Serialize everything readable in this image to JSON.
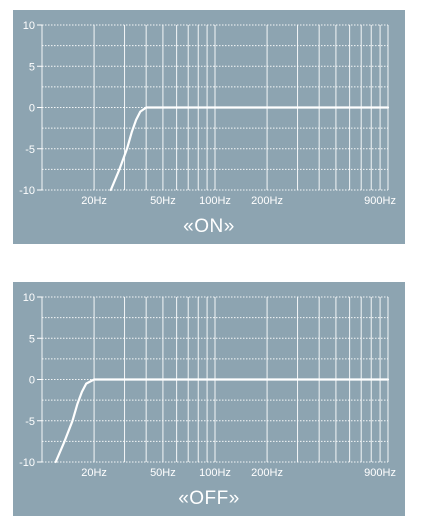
{
  "chart_data": [
    {
      "type": "line",
      "title": "«ON»",
      "x_scale": "log",
      "xlim": [
        10,
        1000
      ],
      "ylim": [
        -10,
        10
      ],
      "yticks": [
        10,
        5,
        0,
        -5,
        -10
      ],
      "xtick_labels": [
        {
          "value": 20,
          "label": "20Hz"
        },
        {
          "value": 50,
          "label": "50Hz"
        },
        {
          "value": 100,
          "label": "100Hz"
        },
        {
          "value": 200,
          "label": "200Hz"
        },
        {
          "value": 900,
          "label": "900Hz"
        }
      ],
      "grid": true,
      "series": [
        {
          "x": [
            25,
            28,
            31,
            33,
            35,
            37,
            40,
            44,
            50,
            100,
            300,
            1000
          ],
          "y": [
            -10,
            -7.5,
            -5,
            -3,
            -1.5,
            -0.5,
            0,
            0,
            0,
            0,
            0,
            0
          ]
        }
      ]
    },
    {
      "type": "line",
      "title": "«OFF»",
      "x_scale": "log",
      "xlim": [
        10,
        1000
      ],
      "ylim": [
        -10,
        10
      ],
      "yticks": [
        10,
        5,
        0,
        -5,
        -10
      ],
      "xtick_labels": [
        {
          "value": 20,
          "label": "20Hz"
        },
        {
          "value": 50,
          "label": "50Hz"
        },
        {
          "value": 100,
          "label": "100Hz"
        },
        {
          "value": 200,
          "label": "200Hz"
        },
        {
          "value": 900,
          "label": "900Hz"
        }
      ],
      "grid": true,
      "series": [
        {
          "x": [
            12,
            13.5,
            15,
            16,
            17,
            18,
            20,
            22,
            25,
            100,
            300,
            1000
          ],
          "y": [
            -10,
            -7.5,
            -5,
            -3,
            -1.5,
            -0.5,
            0,
            0,
            0,
            0,
            0,
            0
          ]
        }
      ]
    }
  ],
  "colors": {
    "panel": "#8da4b1",
    "grid": "#ffffff",
    "curve": "#ffffff"
  }
}
